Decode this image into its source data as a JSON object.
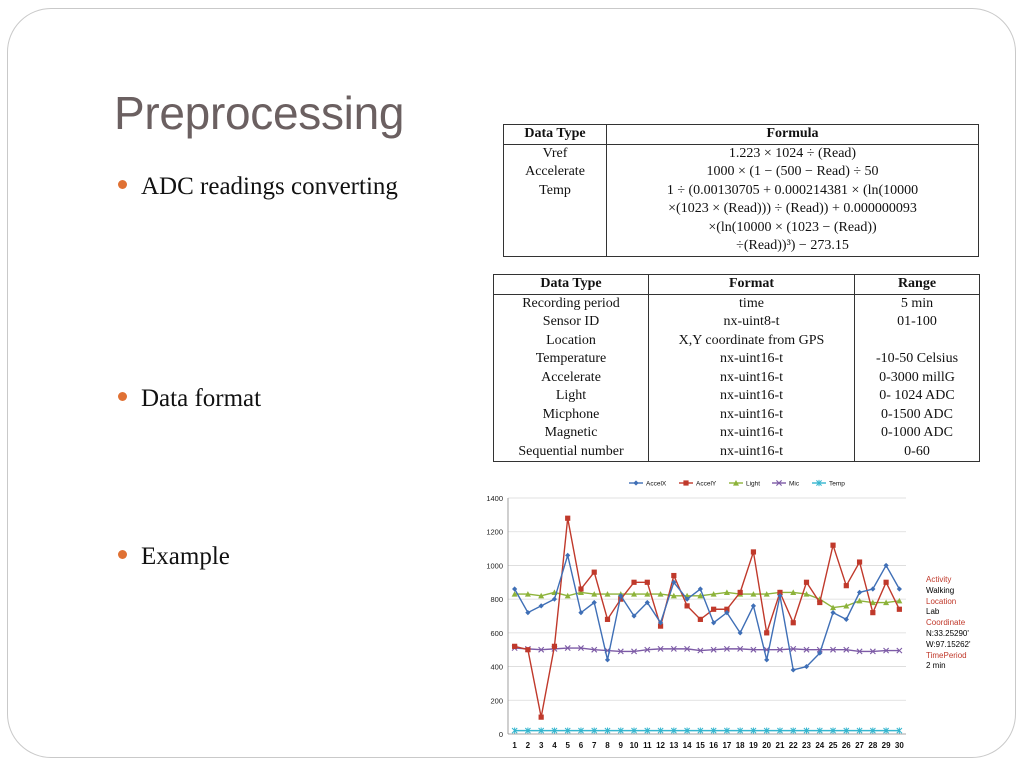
{
  "slide": {
    "title": "Preprocessing",
    "bullets": [
      {
        "text": "ADC readings converting"
      },
      {
        "text": "Data format"
      },
      {
        "text": "Example"
      }
    ]
  },
  "formula_table": {
    "headers": [
      "Data Type",
      "Formula"
    ],
    "types": [
      "Vref",
      "Accelerate",
      "Temp",
      "",
      "",
      ""
    ],
    "formulas": [
      "1.223 × 1024 ÷ (Read)",
      "1000 × (1 − (500 − Read) ÷ 50",
      "1 ÷ (0.00130705 + 0.000214381 × (ln(10000",
      "×(1023 × (Read))) ÷ (Read)) + 0.000000093",
      "×(ln(10000 × (1023 − (Read))",
      "÷(Read))³) − 273.15"
    ]
  },
  "format_table": {
    "headers": [
      "Data Type",
      "Format",
      "Range"
    ],
    "rows": [
      [
        "Recording period",
        "time",
        "5 min"
      ],
      [
        "Sensor ID",
        "nx-uint8-t",
        "01-100"
      ],
      [
        "Location",
        "X,Y coordinate from GPS",
        ""
      ],
      [
        "Temperature",
        "nx-uint16-t",
        "-10-50 Celsius"
      ],
      [
        "Accelerate",
        "nx-uint16-t",
        "0-3000 millG"
      ],
      [
        "Light",
        "nx-uint16-t",
        "0- 1024 ADC"
      ],
      [
        "Micphone",
        "nx-uint16-t",
        "0-1500 ADC"
      ],
      [
        "Magnetic",
        "nx-uint16-t",
        "0-1000 ADC"
      ],
      [
        "Sequential number",
        "nx-uint16-t",
        "0-60"
      ]
    ]
  },
  "chart_annotations": [
    {
      "text": "Activity",
      "color": "#c0392b"
    },
    {
      "text": "Walking",
      "color": "#000000"
    },
    {
      "text": "Location",
      "color": "#c0392b"
    },
    {
      "text": "Lab",
      "color": "#000000"
    },
    {
      "text": "Coordinate",
      "color": "#c0392b"
    },
    {
      "text": "N:33.25290'",
      "color": "#000000"
    },
    {
      "text": "W:97.15262'",
      "color": "#000000"
    },
    {
      "text": "TimePeriod",
      "color": "#c0392b"
    },
    {
      "text": "2 min",
      "color": "#000000"
    }
  ],
  "chart_data": {
    "type": "line",
    "title": "",
    "xlabel": "",
    "ylabel": "",
    "ylim": [
      0,
      1400
    ],
    "yticks": [
      0,
      200,
      400,
      600,
      800,
      1000,
      1200,
      1400
    ],
    "categories": [
      "1",
      "2",
      "3",
      "4",
      "5",
      "6",
      "7",
      "8",
      "9",
      "10",
      "11",
      "12",
      "13",
      "14",
      "15",
      "16",
      "17",
      "18",
      "19",
      "20",
      "21",
      "22",
      "23",
      "24",
      "25",
      "26",
      "27",
      "28",
      "29",
      "30"
    ],
    "legend_position": "top",
    "grid": true,
    "series": [
      {
        "name": "AccelX",
        "color": "#3f6fb6",
        "marker": "diamond",
        "values": [
          860,
          720,
          760,
          800,
          1060,
          720,
          780,
          440,
          820,
          700,
          780,
          660,
          900,
          800,
          860,
          660,
          720,
          600,
          760,
          440,
          820,
          380,
          400,
          480,
          720,
          680,
          840,
          860,
          1000,
          860
        ]
      },
      {
        "name": "AccelY",
        "color": "#c0392b",
        "marker": "square",
        "values": [
          520,
          500,
          100,
          520,
          1280,
          860,
          960,
          680,
          800,
          900,
          900,
          640,
          940,
          760,
          680,
          740,
          740,
          840,
          1080,
          600,
          840,
          660,
          900,
          780,
          1120,
          880,
          1020,
          720,
          900,
          740
        ]
      },
      {
        "name": "Light",
        "color": "#8db33a",
        "marker": "triangle",
        "values": [
          830,
          830,
          820,
          840,
          820,
          840,
          830,
          830,
          830,
          830,
          830,
          830,
          820,
          820,
          820,
          830,
          840,
          830,
          830,
          830,
          840,
          840,
          830,
          800,
          750,
          760,
          790,
          780,
          780,
          790
        ]
      },
      {
        "name": "Mic",
        "color": "#7d5ba6",
        "marker": "x",
        "values": [
          510,
          505,
          500,
          505,
          510,
          510,
          500,
          495,
          490,
          490,
          500,
          505,
          505,
          505,
          495,
          500,
          505,
          505,
          500,
          500,
          500,
          505,
          500,
          500,
          500,
          500,
          490,
          490,
          495,
          495
        ]
      },
      {
        "name": "Temp",
        "color": "#36b6cf",
        "marker": "star",
        "values": [
          20,
          20,
          20,
          20,
          20,
          20,
          20,
          20,
          20,
          20,
          20,
          20,
          20,
          20,
          20,
          20,
          20,
          20,
          20,
          20,
          20,
          20,
          20,
          20,
          20,
          20,
          20,
          20,
          20,
          20
        ]
      }
    ]
  }
}
